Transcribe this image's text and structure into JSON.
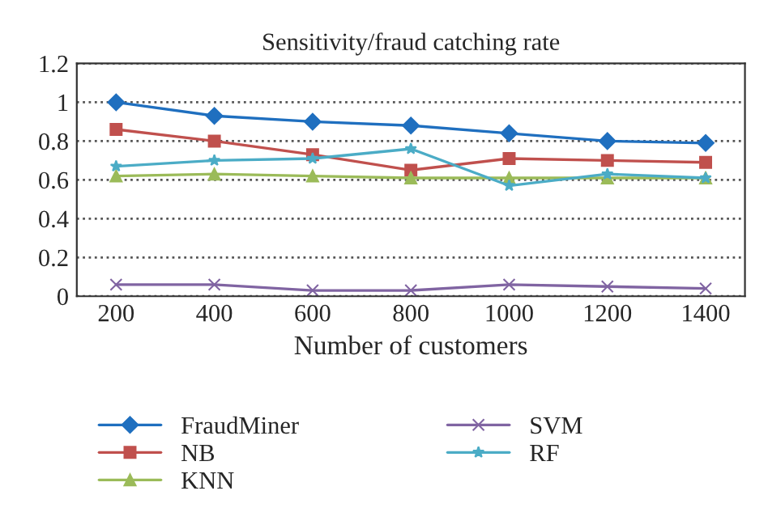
{
  "chart_data": {
    "type": "line",
    "title": "Sensitivity/fraud catching rate",
    "xlabel": "Number of customers",
    "categories": [
      "200",
      "400",
      "600",
      "800",
      "1000",
      "1200",
      "1400"
    ],
    "series": [
      {
        "name": "FraudMiner",
        "color": "#1f6fbf",
        "marker": "diamond",
        "values": [
          1.0,
          0.93,
          0.9,
          0.88,
          0.84,
          0.8,
          0.79
        ]
      },
      {
        "name": "NB",
        "color": "#c0504d",
        "marker": "square",
        "values": [
          0.86,
          0.8,
          0.73,
          0.65,
          0.71,
          0.7,
          0.69
        ]
      },
      {
        "name": "KNN",
        "color": "#9bbb59",
        "marker": "triangle",
        "values": [
          0.62,
          0.63,
          0.62,
          0.61,
          0.61,
          0.61,
          0.61
        ]
      },
      {
        "name": "SVM",
        "color": "#8064a2",
        "marker": "cross",
        "values": [
          0.06,
          0.06,
          0.03,
          0.03,
          0.06,
          0.05,
          0.04
        ]
      },
      {
        "name": "RF",
        "color": "#4bacc6",
        "marker": "star",
        "values": [
          0.67,
          0.7,
          0.71,
          0.76,
          0.57,
          0.63,
          0.61
        ]
      }
    ],
    "ylim": [
      0,
      1.2
    ],
    "yticks": [
      0,
      0.2,
      0.4,
      0.6,
      0.8,
      1,
      1.2
    ],
    "grid": "y",
    "legend": "bottom",
    "line_style": "solid"
  }
}
